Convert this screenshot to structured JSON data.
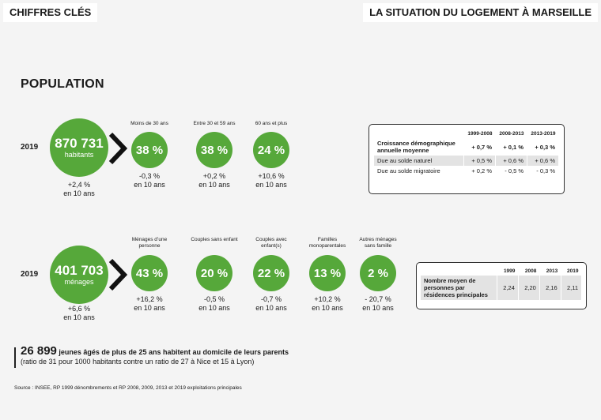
{
  "header": {
    "left_title": "CHIFFRES CLÉS",
    "right_title": "LA SITUATION DU LOGEMENT À MARSEILLE"
  },
  "section_title": "POPULATION",
  "population": {
    "year": "2019",
    "big_value": "870 731",
    "big_unit": "habitants",
    "big_change": "+2,4 %",
    "big_change_period": "en 10 ans",
    "groups": [
      {
        "label": "Moins de 30 ans",
        "value": "38 %",
        "change": "-0,3 %",
        "period": "en 10 ans"
      },
      {
        "label": "Entre 30 et 59 ans",
        "value": "38 %",
        "change": "+0,2 %",
        "period": "en 10 ans"
      },
      {
        "label": "60 ans et plus",
        "value": "24 %",
        "change": "+10,6 %",
        "period": "en 10 ans"
      }
    ]
  },
  "growth_table": {
    "headers": [
      "",
      "1999-2008",
      "2008-2013",
      "2013-2019"
    ],
    "rows": [
      {
        "label": "Croissance démographique annuelle moyenne",
        "values": [
          "+ 0,7 %",
          "+ 0,1 %",
          "+ 0,3 %"
        ]
      },
      {
        "label": "Due au solde naturel",
        "values": [
          "+ 0,5 %",
          "+ 0,6 %",
          "+ 0,6 %"
        ]
      },
      {
        "label": "Due au solde migratoire",
        "values": [
          "+ 0,2 %",
          "- 0,5 %",
          "- 0,3 %"
        ]
      }
    ]
  },
  "households": {
    "year": "2019",
    "big_value": "401 703",
    "big_unit": "ménages",
    "big_change": "+6,6 %",
    "big_change_period": "en 10 ans",
    "groups": [
      {
        "label": "Ménages d’une personne",
        "value": "43 %",
        "change": "+16,2 %",
        "period": "en 10 ans"
      },
      {
        "label": "Couples sans enfant",
        "value": "20 %",
        "change": "-0,5 %",
        "period": "en 10 ans"
      },
      {
        "label": "Couples avec enfant(s)",
        "value": "22 %",
        "change": "-0,7 %",
        "period": "en 10 ans"
      },
      {
        "label": "Familles monoparentales",
        "value": "13 %",
        "change": "+10,2 %",
        "period": "en 10 ans"
      },
      {
        "label": "Autres ménages sans famille",
        "value": "2 %",
        "change": "- 20,7 %",
        "period": "en 10 ans"
      }
    ]
  },
  "persons_table": {
    "headers": [
      "",
      "1999",
      "2008",
      "2013",
      "2019"
    ],
    "row_label": "Nombre moyen de personnes par résidences principales",
    "values": [
      "2,24",
      "2,20",
      "2,16",
      "2,11"
    ]
  },
  "note": {
    "number": "26 899",
    "text": "jeunes âgés de plus de 25 ans habitent au domicile de leurs parents",
    "subtext": "(ratio de 31 pour 1000 habitants contre un ratio de 27 à Nice et 15 à Lyon)"
  },
  "source": "Source : INSEE, RP 1999 dénombrements et RP 2008, 2009, 2013 et 2019 exploitations principales",
  "colors": {
    "accent_green": "#56a83a",
    "background": "#f4f4f4"
  }
}
